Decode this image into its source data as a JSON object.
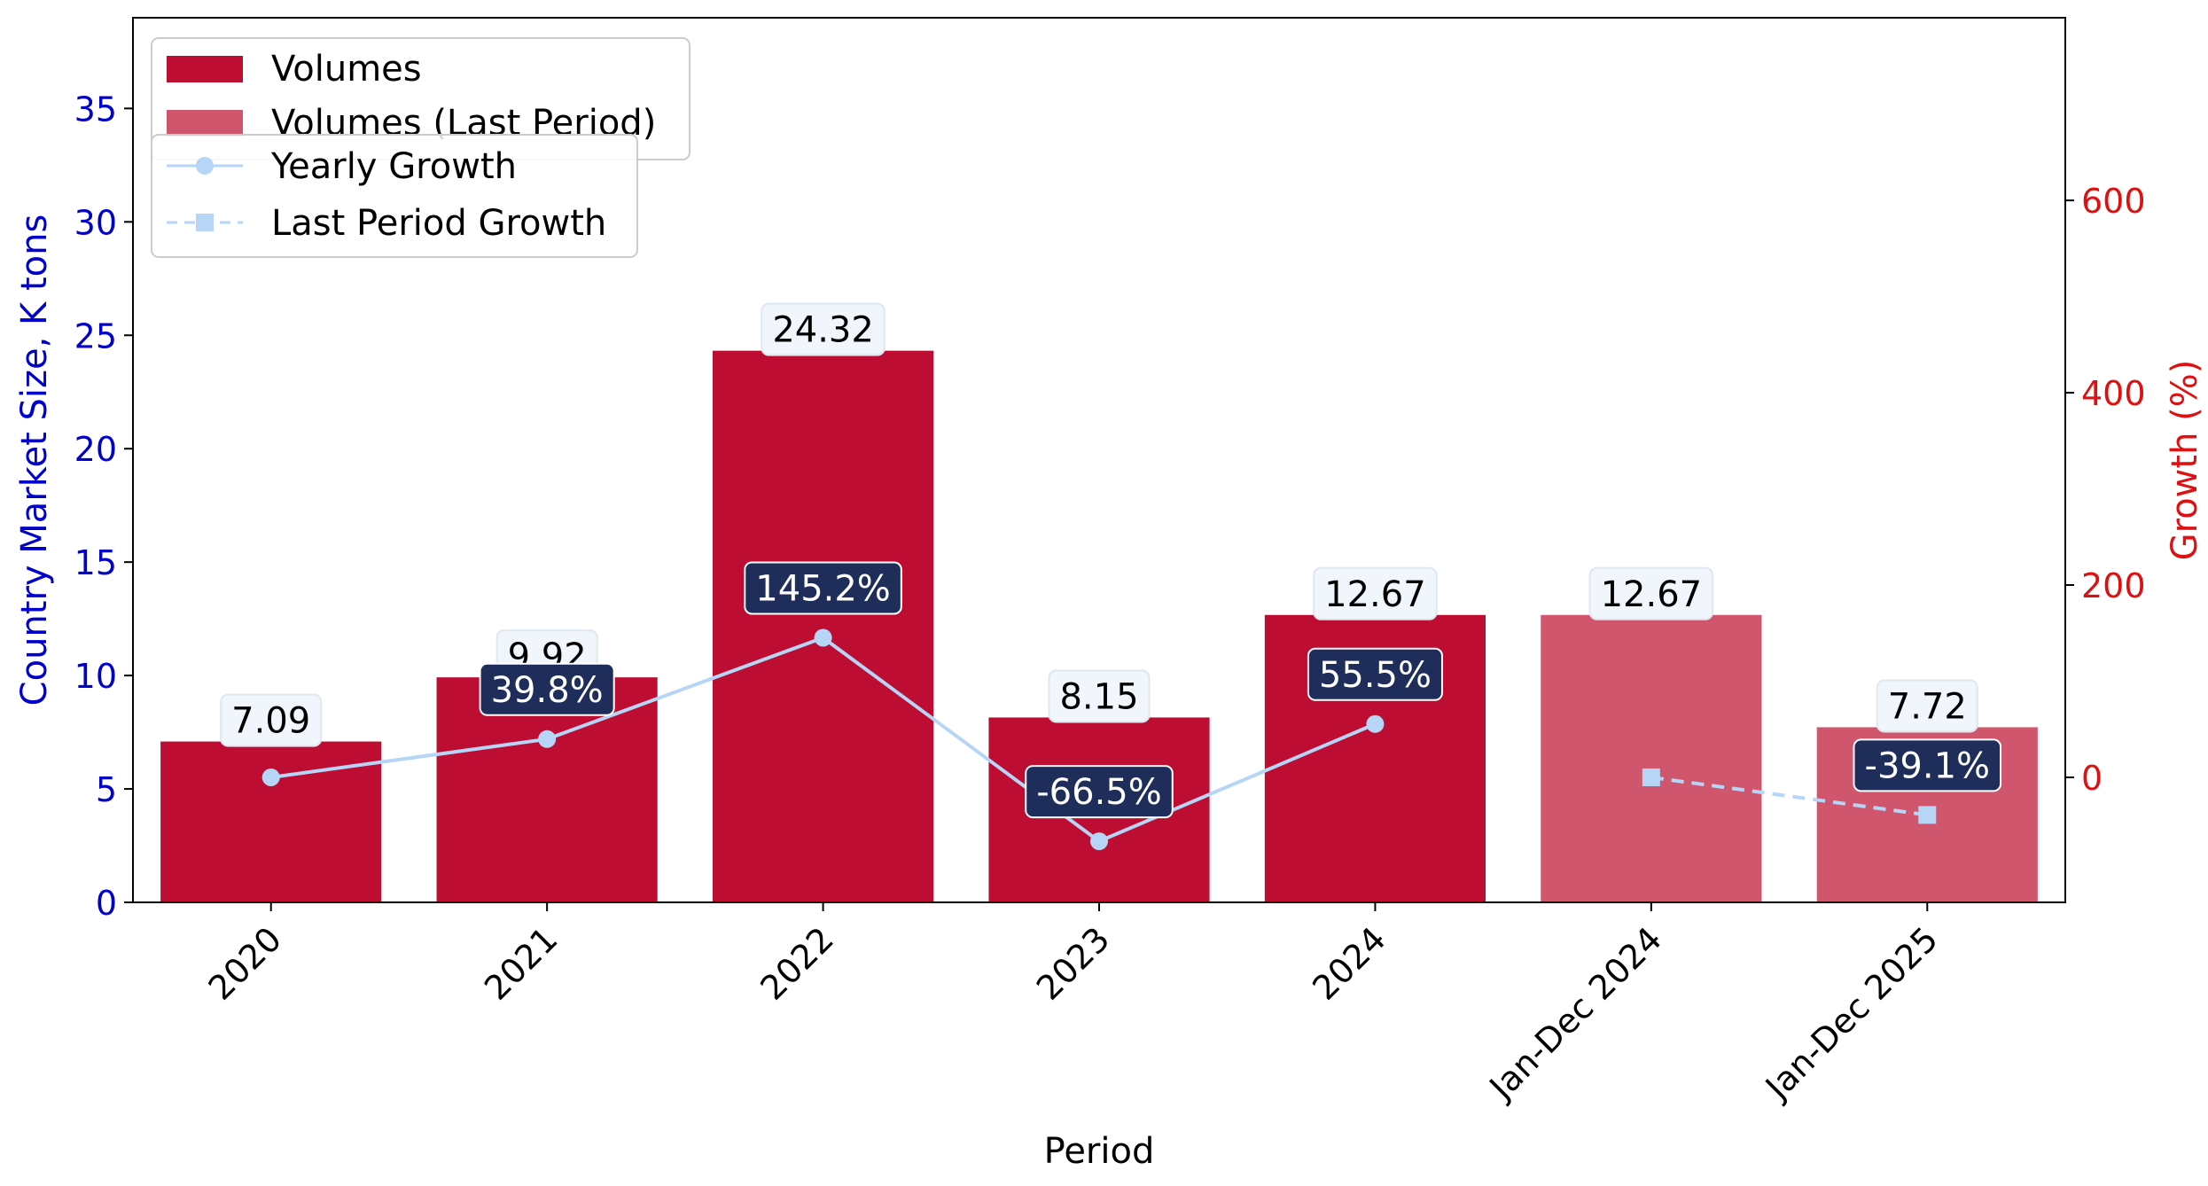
{
  "chart_data": {
    "type": "bar",
    "categories": [
      "2020",
      "2021",
      "2022",
      "2023",
      "2024",
      "Jan-Dec 2024",
      "Jan-Dec 2025"
    ],
    "series": [
      {
        "name": "Volumes",
        "type": "bar",
        "axis": "left",
        "color": "#bd0d32",
        "values": [
          7.09,
          9.92,
          24.32,
          8.15,
          12.67,
          null,
          null
        ],
        "labels": [
          "7.09",
          "9.92",
          "24.32",
          "8.15",
          "12.67",
          "",
          ""
        ]
      },
      {
        "name": "Volumes (Last Period)",
        "type": "bar",
        "axis": "left",
        "color": "#d0566d",
        "values": [
          null,
          null,
          null,
          null,
          null,
          12.67,
          7.72
        ],
        "labels": [
          "",
          "",
          "",
          "",
          "",
          "12.67",
          "7.72"
        ]
      },
      {
        "name": "Yearly Growth",
        "type": "line",
        "axis": "right",
        "color": "#b6d5f7",
        "marker": "circle",
        "values": [
          0,
          39.8,
          145.2,
          -66.5,
          55.5,
          null,
          null
        ],
        "labels": [
          "",
          "39.8%",
          "145.2%",
          "-66.5%",
          "55.5%",
          "",
          ""
        ]
      },
      {
        "name": "Last Period Growth",
        "type": "line",
        "axis": "right",
        "color": "#b6d5f7",
        "marker": "square",
        "dashed": true,
        "values": [
          null,
          null,
          null,
          null,
          null,
          0,
          -39.1
        ],
        "labels": [
          "",
          "",
          "",
          "",
          "",
          "",
          "-39.1%"
        ]
      }
    ],
    "xlabel": "Period",
    "ylabel": "Country Market Size, K tons",
    "y2label": "Growth (%)",
    "ylim": [
      0,
      39
    ],
    "y2lim": [
      -130,
      790
    ],
    "yticks": [
      0,
      5,
      10,
      15,
      20,
      25,
      30,
      35
    ],
    "y2ticks": [
      0,
      200,
      400,
      600
    ],
    "ylabel_color": "#0000cc",
    "y2label_color": "#dd1111",
    "growth_label_bg": "#1f2d5b",
    "value_label_bg": "#f0f6fb",
    "grid": false,
    "legend_position": "top-left"
  }
}
